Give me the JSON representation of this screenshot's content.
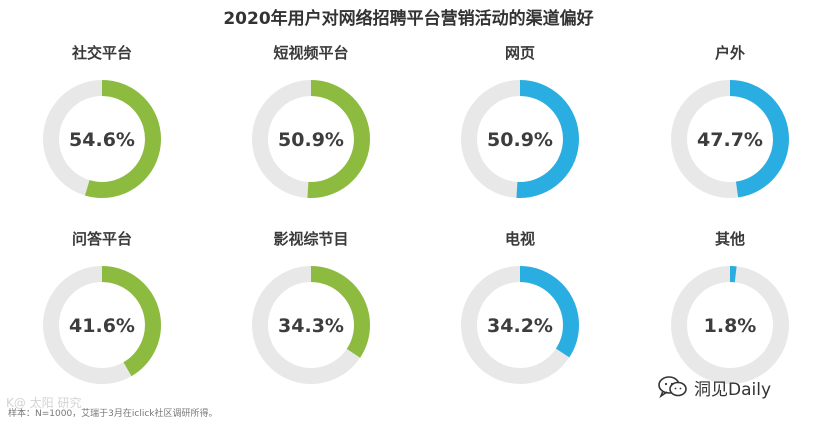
{
  "title": "2020年用户对网络招聘平台营销活动的渠道偏好",
  "colors": {
    "green": "#8cbb3f",
    "blue": "#2aaee2",
    "track": "#e8e8e8"
  },
  "chart_data": {
    "type": "donut",
    "title": "2020年用户对网络招聘平台营销活动的渠道偏好",
    "unit": "%",
    "items": [
      {
        "label": "社交平台",
        "value": 54.6,
        "display": "54.6%",
        "color": "#8cbb3f"
      },
      {
        "label": "短视频平台",
        "value": 50.9,
        "display": "50.9%",
        "color": "#8cbb3f"
      },
      {
        "label": "网页",
        "value": 50.9,
        "display": "50.9%",
        "color": "#2aaee2"
      },
      {
        "label": "户外",
        "value": 47.7,
        "display": "47.7%",
        "color": "#2aaee2"
      },
      {
        "label": "问答平台",
        "value": 41.6,
        "display": "41.6%",
        "color": "#8cbb3f"
      },
      {
        "label": "影视综节目",
        "value": 34.3,
        "display": "34.3%",
        "color": "#8cbb3f"
      },
      {
        "label": "电视",
        "value": 34.2,
        "display": "34.2%",
        "color": "#2aaee2"
      },
      {
        "label": "其他",
        "value": 1.8,
        "display": "1.8%",
        "color": "#2aaee2"
      }
    ]
  },
  "footnote": "样本：N=1000，艾瑞于3月在iclick社区调研所得。",
  "watermark_left": "K@ 太阳 研究",
  "watermark_right": "洞见Daily",
  "icons": {
    "wechat": "wechat-icon"
  }
}
